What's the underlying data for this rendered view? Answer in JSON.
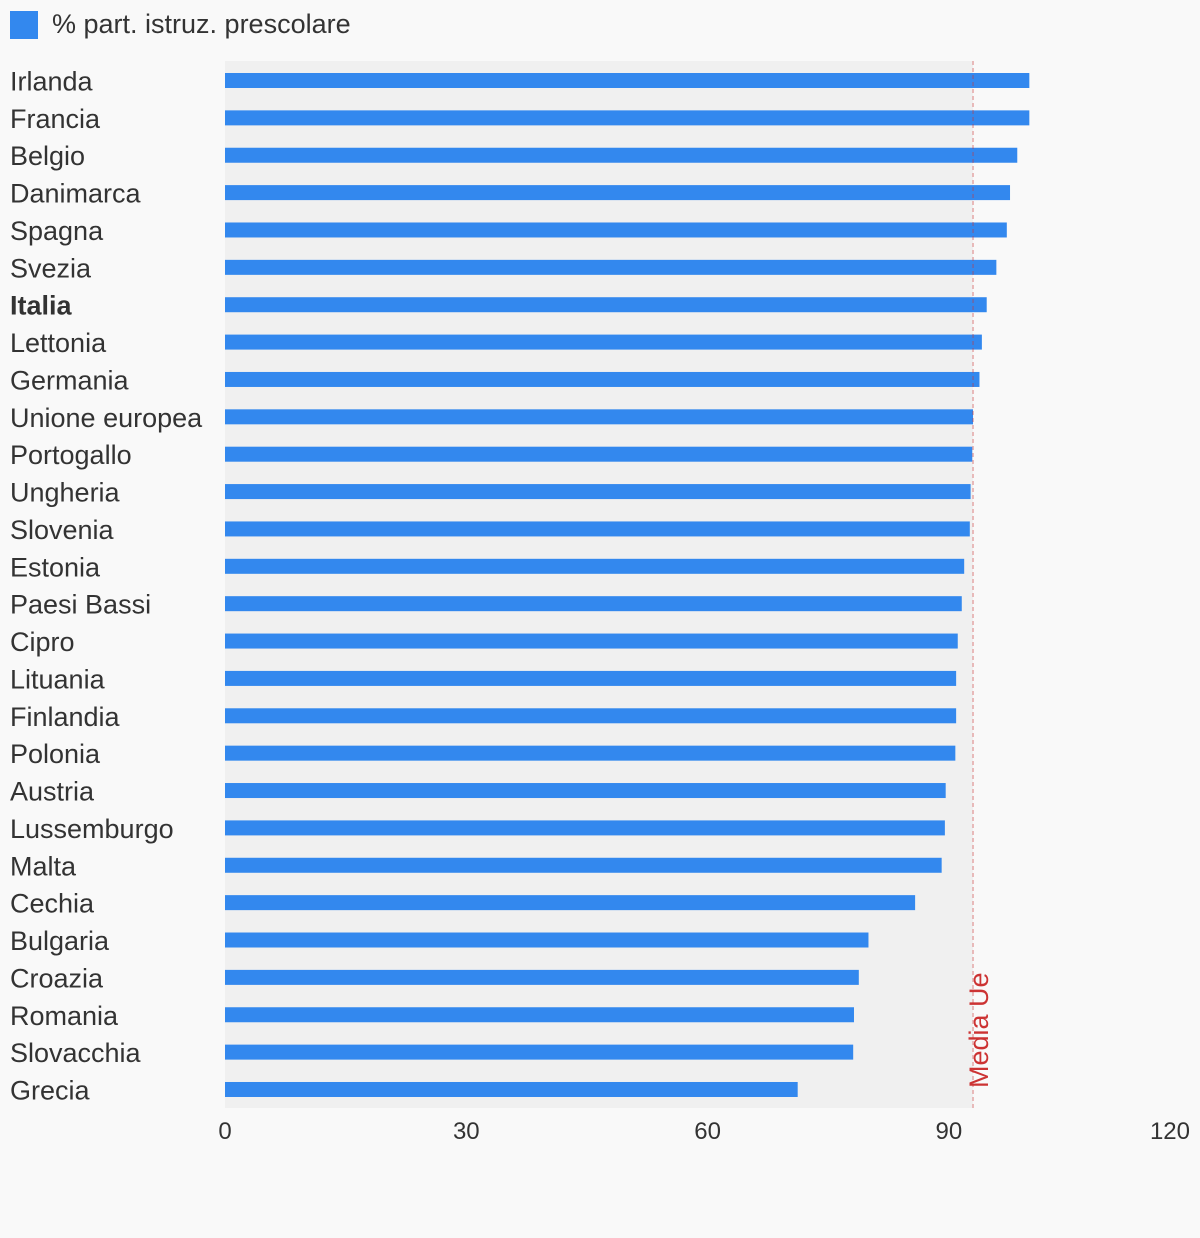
{
  "chart_data": {
    "type": "bar",
    "orientation": "horizontal",
    "legend": {
      "label": "% part. istruz. prescolare",
      "placement": "top-left"
    },
    "categories": [
      "Irlanda",
      "Francia",
      "Belgio",
      "Danimarca",
      "Spagna",
      "Svezia",
      "Italia",
      "Lettonia",
      "Germania",
      "Unione europea",
      "Portogallo",
      "Ungheria",
      "Slovenia",
      "Estonia",
      "Paesi Bassi",
      "Cipro",
      "Lituania",
      "Finlandia",
      "Polonia",
      "Austria",
      "Lussemburgo",
      "Malta",
      "Cechia",
      "Bulgaria",
      "Croazia",
      "Romania",
      "Slovacchia",
      "Grecia"
    ],
    "series": [
      {
        "name": "% part. istruz. prescolare",
        "values": [
          100,
          100,
          98.5,
          97.6,
          97.2,
          95.9,
          94.7,
          94.1,
          93.8,
          93.0,
          92.9,
          92.7,
          92.6,
          91.9,
          91.6,
          91.1,
          90.9,
          90.9,
          90.8,
          89.6,
          89.5,
          89.1,
          85.8,
          80.0,
          78.8,
          78.2,
          78.1,
          71.2
        ]
      }
    ],
    "highlighted_category": "Italia",
    "reference_line": {
      "label": "Media Ue",
      "value": 93.0
    },
    "xlim": [
      0,
      120
    ],
    "xticks": [
      "0",
      "30",
      "60",
      "90",
      "120"
    ],
    "colors": {
      "bar": "#3388ee",
      "reference": "#cc3333",
      "plot_band": "#f0f0f0",
      "background": "#f9f9f9"
    },
    "grid": false
  }
}
